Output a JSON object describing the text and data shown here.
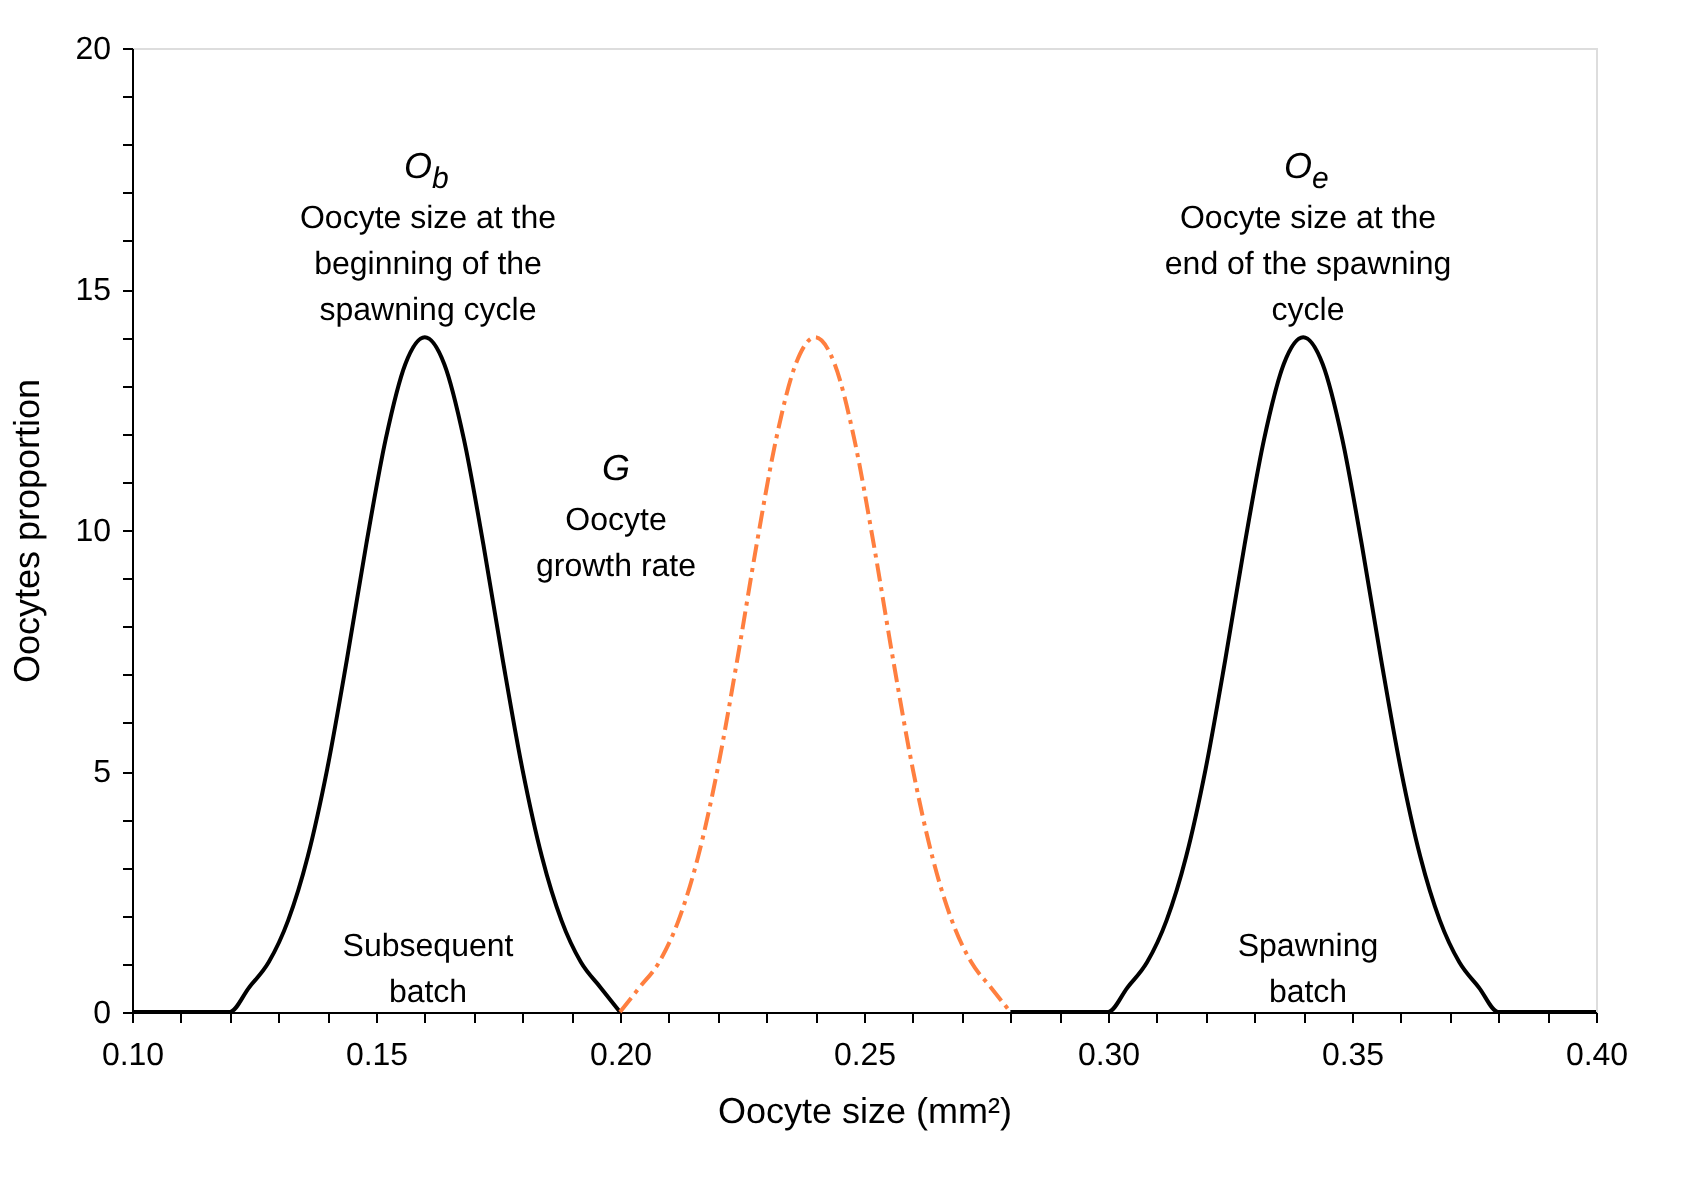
{
  "chart_data": {
    "type": "line",
    "xlabel": "Oocyte size (mm²)",
    "ylabel": "Oocytes proportion",
    "series": [
      {
        "color": "#000000",
        "line_style": "solid",
        "x": [
          0.1,
          0.11,
          0.12,
          0.124,
          0.128,
          0.132,
          0.136,
          0.14,
          0.144,
          0.148,
          0.152,
          0.156,
          0.16,
          0.164,
          0.168,
          0.172,
          0.176,
          0.18,
          0.184,
          0.188,
          0.192,
          0.196,
          0.2,
          0.24,
          0.28,
          0.29,
          0.3,
          0.304,
          0.308,
          0.312,
          0.316,
          0.32,
          0.324,
          0.328,
          0.332,
          0.336,
          0.34,
          0.344,
          0.348,
          0.352,
          0.356,
          0.36,
          0.364,
          0.368,
          0.372,
          0.376,
          0.38,
          0.39,
          0.4
        ],
        "values": [
          0,
          0,
          0,
          0.51,
          1.03,
          1.9,
          3.22,
          5.04,
          7.29,
          9.7,
          11.89,
          13.44,
          14,
          13.44,
          11.89,
          9.7,
          7.29,
          5.04,
          3.22,
          1.9,
          1.03,
          0.51,
          0,
          null,
          0,
          0,
          0,
          0.51,
          1.03,
          1.9,
          3.22,
          5.04,
          7.29,
          9.7,
          11.89,
          13.44,
          14,
          13.44,
          11.89,
          9.7,
          7.29,
          5.04,
          3.22,
          1.9,
          1.03,
          0.51,
          0,
          0,
          0
        ]
      },
      {
        "color": "#ff7f3f",
        "line_style": "dashed",
        "x": [
          0.2,
          0.204,
          0.208,
          0.212,
          0.216,
          0.22,
          0.224,
          0.228,
          0.232,
          0.236,
          0.24,
          0.244,
          0.248,
          0.252,
          0.256,
          0.26,
          0.264,
          0.268,
          0.272,
          0.276,
          0.28
        ],
        "values": [
          0,
          0.51,
          1.03,
          1.9,
          3.22,
          5.04,
          7.29,
          9.7,
          11.89,
          13.44,
          14,
          13.44,
          11.89,
          9.7,
          7.29,
          5.04,
          3.22,
          1.9,
          1.03,
          0.51,
          0
        ]
      }
    ],
    "xlim": [
      0.1,
      0.4
    ],
    "ylim": [
      0,
      20
    ],
    "xticks": [
      {
        "value": 0.1,
        "label": "0.10"
      },
      {
        "value": 0.11,
        "label": null
      },
      {
        "value": 0.12,
        "label": null
      },
      {
        "value": 0.13,
        "label": null
      },
      {
        "value": 0.14,
        "label": null
      },
      {
        "value": 0.15,
        "label": "0.15"
      },
      {
        "value": 0.16,
        "label": null
      },
      {
        "value": 0.17,
        "label": null
      },
      {
        "value": 0.18,
        "label": null
      },
      {
        "value": 0.19,
        "label": null
      },
      {
        "value": 0.2,
        "label": "0.20"
      },
      {
        "value": 0.21,
        "label": null
      },
      {
        "value": 0.22,
        "label": null
      },
      {
        "value": 0.23,
        "label": null
      },
      {
        "value": 0.24,
        "label": null
      },
      {
        "value": 0.25,
        "label": "0.25"
      },
      {
        "value": 0.26,
        "label": null
      },
      {
        "value": 0.27,
        "label": null
      },
      {
        "value": 0.28,
        "label": null
      },
      {
        "value": 0.29,
        "label": null
      },
      {
        "value": 0.3,
        "label": "0.30"
      },
      {
        "value": 0.31,
        "label": null
      },
      {
        "value": 0.32,
        "label": null
      },
      {
        "value": 0.33,
        "label": null
      },
      {
        "value": 0.34,
        "label": null
      },
      {
        "value": 0.35,
        "label": "0.35"
      },
      {
        "value": 0.36,
        "label": null
      },
      {
        "value": 0.37,
        "label": null
      },
      {
        "value": 0.38,
        "label": null
      },
      {
        "value": 0.39,
        "label": null
      },
      {
        "value": 0.4,
        "label": "0.40"
      }
    ],
    "yticks": [
      0,
      {
        "value": 1,
        "label": null
      },
      {
        "value": 2,
        "label": null
      },
      {
        "value": 3,
        "label": null
      },
      {
        "value": 4,
        "label": null
      },
      5,
      {
        "value": 6,
        "label": null
      },
      {
        "value": 7,
        "label": null
      },
      {
        "value": 8,
        "label": null
      },
      {
        "value": 9,
        "label": null
      },
      10,
      {
        "value": 11,
        "label": null
      },
      {
        "value": 12,
        "label": null
      },
      {
        "value": 13,
        "label": null
      },
      {
        "value": 14,
        "label": null
      },
      15,
      {
        "value": 16,
        "label": null
      },
      {
        "value": 17,
        "label": null
      },
      {
        "value": 18,
        "label": null
      },
      {
        "value": 19,
        "label": null
      },
      20
    ],
    "grid": false,
    "marker": "none",
    "annotations": [
      "O$_{b}$\nOocyte size at the\nbeginning of the\nspawning cycle",
      "O$_{e}$\nOocyte size at the\nend of the spawning\ncycle",
      "G\nOocyte\ngrowth rate",
      "Subsequent\nbatch",
      "Spawning\nbatch"
    ]
  }
}
